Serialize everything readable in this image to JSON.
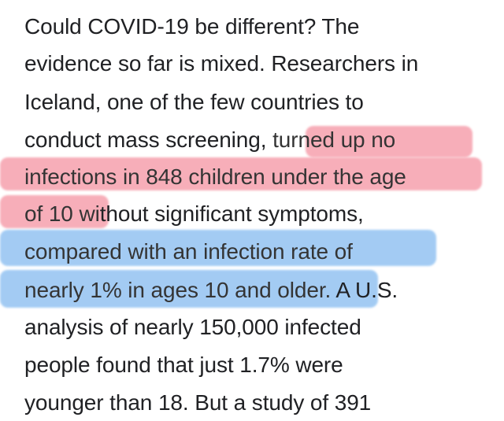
{
  "article": {
    "lines": [
      {
        "text": "Could COVID-19 be different? The"
      },
      {
        "text": "evidence so far is mixed. Researchers in"
      },
      {
        "text": "Iceland, one of the few countries to"
      },
      {
        "pre": "conduct mass screening, ",
        "marked": "turned up no"
      },
      {
        "marked": "infections in 848 children under the age"
      },
      {
        "marked": "of 10 wi",
        "post": "thout significant symptoms,"
      },
      {
        "marked": "compared with an infection rate of"
      },
      {
        "marked": "nearly 1% in ages 10 and older.",
        "post": " A U.S."
      },
      {
        "text": "analysis of nearly 150,000 infected"
      },
      {
        "text": "people found that just 1.7% were"
      },
      {
        "text": "younger than 18. But a study of 391"
      }
    ]
  },
  "colors": {
    "highlight_red": "#f6a0ad",
    "highlight_blue": "#93c3f2",
    "text": "#202124"
  }
}
